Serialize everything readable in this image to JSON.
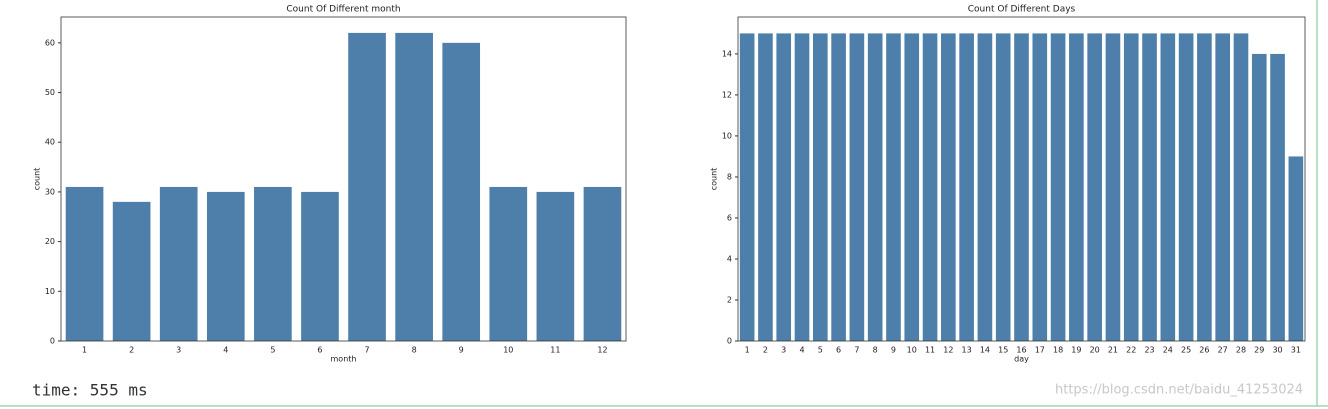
{
  "chart_data": [
    {
      "type": "bar",
      "title": "Count Of Different month",
      "x_label": "month",
      "y_label": "count",
      "categories": [
        "1",
        "2",
        "3",
        "4",
        "5",
        "6",
        "7",
        "8",
        "9",
        "10",
        "11",
        "12"
      ],
      "values": [
        31,
        28,
        31,
        30,
        31,
        30,
        62,
        62,
        60,
        31,
        30,
        31
      ],
      "color": "#4e7fab",
      "ylim": [
        0,
        65.2
      ],
      "yticks": [
        0,
        10,
        20,
        30,
        40,
        50,
        60
      ]
    },
    {
      "type": "bar",
      "title": "Count Of Different Days",
      "x_label": "day",
      "y_label": "count",
      "categories": [
        "1",
        "2",
        "3",
        "4",
        "5",
        "6",
        "7",
        "8",
        "9",
        "10",
        "11",
        "12",
        "13",
        "14",
        "15",
        "16",
        "17",
        "18",
        "19",
        "20",
        "21",
        "22",
        "23",
        "24",
        "25",
        "26",
        "27",
        "28",
        "29",
        "30",
        "31"
      ],
      "values": [
        15,
        15,
        15,
        15,
        15,
        15,
        15,
        15,
        15,
        15,
        15,
        15,
        15,
        15,
        15,
        15,
        15,
        15,
        15,
        15,
        15,
        15,
        15,
        15,
        15,
        15,
        15,
        15,
        14,
        14,
        9
      ],
      "color": "#4e7fab",
      "ylim": [
        0,
        15.8
      ],
      "yticks": [
        0,
        2,
        4,
        6,
        8,
        10,
        12,
        14
      ]
    }
  ],
  "output": {
    "time": "time: 555 ms",
    "watermark": "https://blog.csdn.net/baidu_41253024"
  }
}
